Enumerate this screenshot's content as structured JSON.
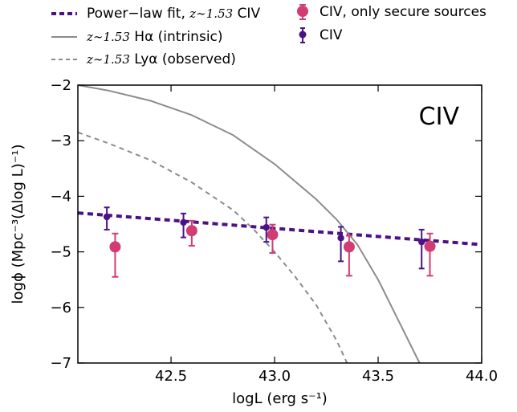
{
  "legend": {
    "fit_prefix": "Power−law fit,",
    "fit_math": "z∼1.53",
    "fit_suffix": "CIV",
    "halpha_math": "z∼1.53",
    "halpha_suffix": "Hα (intrinsic)",
    "lya_math": "z∼1.53",
    "lya_suffix": "Lyα (observed)",
    "secure": "CIV, only secure sources",
    "civ": "CIV"
  },
  "colors": {
    "fit": "#4b1286",
    "civ_all": "#4b1286",
    "civ_secure": "#d13d73",
    "halpha": "#8c8c8c",
    "lya": "#8c8c8c"
  },
  "chart_data": {
    "type": "scatter",
    "panel_label": "CIV",
    "xlabel": "logL (erg s⁻¹)",
    "ylabel": "logϕ (Mpc⁻³(Δlog L)⁻¹)",
    "xlim": [
      42.05,
      44.0
    ],
    "ylim": [
      -7,
      -2
    ],
    "xticks": [
      42.5,
      43.0,
      43.5,
      44.0
    ],
    "xtick_labels": [
      "42.5",
      "43.0",
      "43.5",
      "44.0"
    ],
    "yticks": [
      -7,
      -6,
      -5,
      -4,
      -3,
      -2
    ],
    "ytick_labels": [
      "−7",
      "−6",
      "−5",
      "−4",
      "−3",
      "−2"
    ],
    "series": [
      {
        "name": "CIV",
        "kind": "errorbar",
        "x": [
          42.19,
          42.56,
          42.96,
          43.32,
          43.71
        ],
        "y": [
          -4.37,
          -4.47,
          -4.56,
          -4.75,
          -4.82
        ],
        "yerr_low": [
          0.23,
          0.27,
          0.26,
          0.42,
          0.48
        ],
        "yerr_high": [
          0.17,
          0.16,
          0.18,
          0.2,
          0.22
        ]
      },
      {
        "name": "CIV, only secure sources",
        "kind": "errorbar",
        "x": [
          42.23,
          42.6,
          42.99,
          43.36,
          43.75
        ],
        "y": [
          -4.91,
          -4.62,
          -4.69,
          -4.91,
          -4.9
        ],
        "yerr_low": [
          0.54,
          0.27,
          0.33,
          0.52,
          0.53
        ],
        "yerr_high": [
          0.24,
          0.18,
          0.18,
          0.2,
          0.23
        ]
      },
      {
        "name": "Power−law fit, z∼1.53 CIV",
        "kind": "line",
        "x": [
          42.05,
          44.0
        ],
        "y": [
          -4.3,
          -4.87
        ]
      },
      {
        "name": "z∼1.53 Hα (intrinsic)",
        "kind": "line",
        "x": [
          42.05,
          42.2,
          42.4,
          42.6,
          42.8,
          43.0,
          43.2,
          43.3,
          43.4,
          43.5,
          43.6,
          43.7
        ],
        "y": [
          -2.0,
          -2.1,
          -2.28,
          -2.54,
          -2.9,
          -3.42,
          -4.05,
          -4.42,
          -4.87,
          -5.5,
          -6.25,
          -7.0
        ]
      },
      {
        "name": "z∼1.53 Lyα (observed)",
        "kind": "line",
        "x": [
          42.05,
          42.2,
          42.4,
          42.6,
          42.8,
          42.9,
          43.0,
          43.1,
          43.2,
          43.3,
          43.35
        ],
        "y": [
          -2.85,
          -3.05,
          -3.35,
          -3.75,
          -4.25,
          -4.6,
          -5.0,
          -5.45,
          -5.95,
          -6.6,
          -7.0
        ]
      }
    ]
  }
}
